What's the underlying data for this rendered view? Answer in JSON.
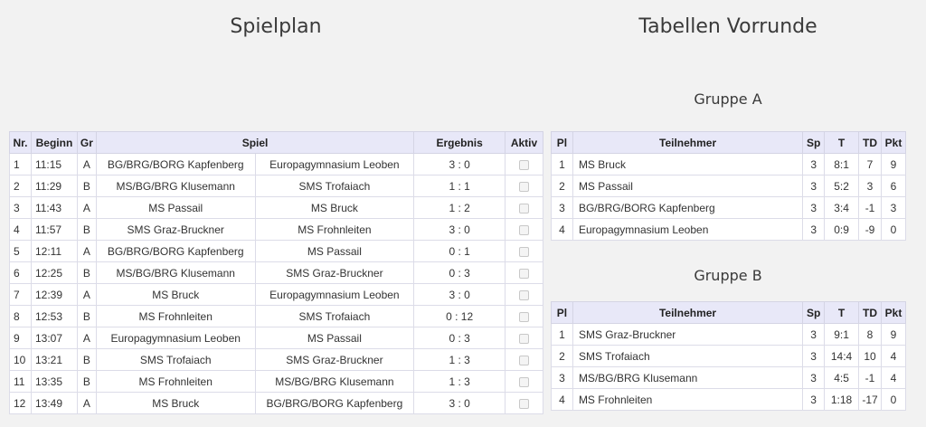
{
  "spielplan": {
    "title": "Spielplan",
    "headers": {
      "nr": "Nr.",
      "beginn": "Beginn",
      "gr": "Gr",
      "spiel": "Spiel",
      "ergebnis": "Ergebnis",
      "aktiv": "Aktiv"
    },
    "rows": [
      {
        "nr": "1",
        "time": "11:15",
        "gr": "A",
        "home": "BG/BRG/BORG Kapfenberg",
        "away": "Europagymnasium Leoben",
        "result": "3 : 0",
        "aktiv": false
      },
      {
        "nr": "2",
        "time": "11:29",
        "gr": "B",
        "home": "MS/BG/BRG Klusemann",
        "away": "SMS Trofaiach",
        "result": "1 : 1",
        "aktiv": false
      },
      {
        "nr": "3",
        "time": "11:43",
        "gr": "A",
        "home": "MS Passail",
        "away": "MS Bruck",
        "result": "1 : 2",
        "aktiv": false
      },
      {
        "nr": "4",
        "time": "11:57",
        "gr": "B",
        "home": "SMS Graz-Bruckner",
        "away": "MS Frohnleiten",
        "result": "3 : 0",
        "aktiv": false
      },
      {
        "nr": "5",
        "time": "12:11",
        "gr": "A",
        "home": "BG/BRG/BORG Kapfenberg",
        "away": "MS Passail",
        "result": "0 : 1",
        "aktiv": false
      },
      {
        "nr": "6",
        "time": "12:25",
        "gr": "B",
        "home": "MS/BG/BRG Klusemann",
        "away": "SMS Graz-Bruckner",
        "result": "0 : 3",
        "aktiv": false
      },
      {
        "nr": "7",
        "time": "12:39",
        "gr": "A",
        "home": "MS Bruck",
        "away": "Europagymnasium Leoben",
        "result": "3 : 0",
        "aktiv": false
      },
      {
        "nr": "8",
        "time": "12:53",
        "gr": "B",
        "home": "MS Frohnleiten",
        "away": "SMS Trofaiach",
        "result": "0 : 12",
        "aktiv": false
      },
      {
        "nr": "9",
        "time": "13:07",
        "gr": "A",
        "home": "Europagymnasium Leoben",
        "away": "MS Passail",
        "result": "0 : 3",
        "aktiv": false
      },
      {
        "nr": "10",
        "time": "13:21",
        "gr": "B",
        "home": "SMS Trofaiach",
        "away": "SMS Graz-Bruckner",
        "result": "1 : 3",
        "aktiv": false
      },
      {
        "nr": "11",
        "time": "13:35",
        "gr": "B",
        "home": "MS Frohnleiten",
        "away": "MS/BG/BRG Klusemann",
        "result": "1 : 3",
        "aktiv": false
      },
      {
        "nr": "12",
        "time": "13:49",
        "gr": "A",
        "home": "MS Bruck",
        "away": "BG/BRG/BORG Kapfenberg",
        "result": "3 : 0",
        "aktiv": false
      }
    ]
  },
  "tabellen": {
    "title": "Tabellen Vorrunde",
    "headers": {
      "pl": "Pl",
      "teilnehmer": "Teilnehmer",
      "sp": "Sp",
      "t": "T",
      "td": "TD",
      "pkt": "Pkt"
    },
    "groups": [
      {
        "name": "Gruppe A",
        "rows": [
          {
            "pl": "1",
            "team": "MS Bruck",
            "sp": "3",
            "t": "8:1",
            "td": "7",
            "pkt": "9"
          },
          {
            "pl": "2",
            "team": "MS Passail",
            "sp": "3",
            "t": "5:2",
            "td": "3",
            "pkt": "6"
          },
          {
            "pl": "3",
            "team": "BG/BRG/BORG Kapfenberg",
            "sp": "3",
            "t": "3:4",
            "td": "-1",
            "pkt": "3"
          },
          {
            "pl": "4",
            "team": "Europagymnasium Leoben",
            "sp": "3",
            "t": "0:9",
            "td": "-9",
            "pkt": "0"
          }
        ]
      },
      {
        "name": "Gruppe B",
        "rows": [
          {
            "pl": "1",
            "team": "SMS Graz-Bruckner",
            "sp": "3",
            "t": "9:1",
            "td": "8",
            "pkt": "9"
          },
          {
            "pl": "2",
            "team": "SMS Trofaiach",
            "sp": "3",
            "t": "14:4",
            "td": "10",
            "pkt": "4"
          },
          {
            "pl": "3",
            "team": "MS/BG/BRG Klusemann",
            "sp": "3",
            "t": "4:5",
            "td": "-1",
            "pkt": "4"
          },
          {
            "pl": "4",
            "team": "MS Frohnleiten",
            "sp": "3",
            "t": "1:18",
            "td": "-17",
            "pkt": "0"
          }
        ]
      }
    ]
  }
}
